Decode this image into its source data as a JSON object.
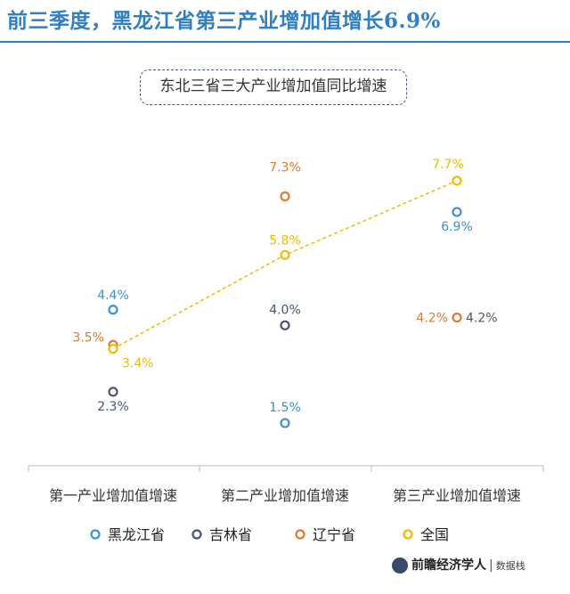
{
  "headline": "前三季度，黑龙江省第三产业增加值增长6.9%",
  "footer": {
    "brand": "前瞻经济学人",
    "source": "数据栈"
  },
  "chart_data": {
    "type": "scatter",
    "title": "东北三省三大产业增加值同比增速",
    "categories": [
      "第一产业增加值增速",
      "第二产业增加值增速",
      "第三产业增加值增速"
    ],
    "ylim": [
      1.0,
      8.2
    ],
    "grid": false,
    "legend_position": "bottom",
    "series": [
      {
        "name": "黑龙江省",
        "color": "#3d8fd6",
        "values": [
          4.4,
          1.5,
          6.9
        ],
        "labels": [
          "4.4%",
          "1.5%",
          "6.9%"
        ]
      },
      {
        "name": "吉林省",
        "color": "#4a5372",
        "values": [
          2.3,
          4.0,
          null
        ],
        "labels": [
          "2.3%",
          "4.0%",
          ""
        ]
      },
      {
        "name": "辽宁省",
        "color": "#e07a2e",
        "values": [
          3.5,
          7.3,
          4.2
        ],
        "labels": [
          "3.5%",
          "7.3%",
          "4.2%"
        ]
      },
      {
        "name": "全国",
        "color": "#f5b800",
        "values": [
          3.4,
          5.8,
          7.7
        ],
        "labels": [
          "3.4%",
          "5.8%",
          "7.7%"
        ],
        "connected": true
      }
    ],
    "extra_label": "4.2%"
  }
}
